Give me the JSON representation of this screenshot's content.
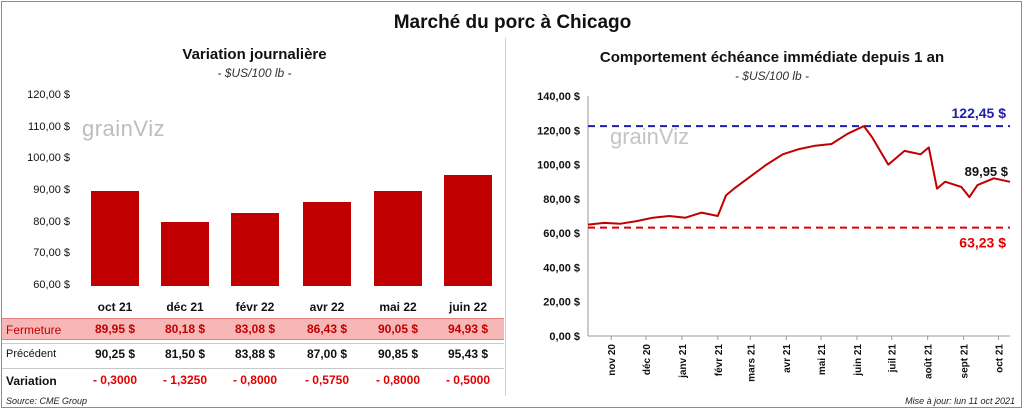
{
  "title": "Marché du porc à Chicago",
  "left_panel": {
    "title": "Variation  journalière",
    "subtitle": "- $US/100 lb -",
    "watermark": "grainViz",
    "y_ticks": [
      "120,00 $",
      "110,00 $",
      "100,00 $",
      "90,00 $",
      "80,00 $",
      "70,00 $",
      "60,00 $"
    ],
    "table": {
      "row_labels": [
        "Fermeture",
        "Précédent",
        "Variation"
      ],
      "fermeture": [
        "89,95  $",
        "80,18  $",
        "83,08  $",
        "86,43  $",
        "90,05  $",
        "94,93  $"
      ],
      "precedent": [
        "90,25  $",
        "81,50  $",
        "83,88  $",
        "87,00  $",
        "90,85  $",
        "95,43  $"
      ],
      "variation": [
        "- 0,3000",
        "- 1,3250",
        "- 0,8000",
        "- 0,5750",
        "- 0,8000",
        "- 0,5000"
      ]
    }
  },
  "right_panel": {
    "title": "Comportement  échéance immédiate depuis 1 an",
    "subtitle": "- $US/100 lb -",
    "watermark": "grainViz",
    "y_ticks": [
      "140,00 $",
      "120,00 $",
      "100,00 $",
      "80,00 $",
      "60,00 $",
      "40,00 $",
      "20,00 $",
      "0,00 $"
    ],
    "x_ticks": [
      "nov 20",
      "déc 20",
      "janv 21",
      "févr 21",
      "mars 21",
      "avr 21",
      "mai 21",
      "juin 21",
      "juil 21",
      "août 21",
      "sept 21",
      "oct 21"
    ],
    "high_label": "122,45 $",
    "low_label": "63,23 $",
    "last_label": "89,95 $"
  },
  "footer": {
    "source": "Source: CME Group",
    "updated": "Mise à jour: lun 11 oct 2021"
  },
  "colors": {
    "bar": "#c00000",
    "high_line": "#1f1fa8",
    "low_line": "#e00000",
    "fermeture_band": "#f7b7b7",
    "variation_text": "#e00000"
  },
  "chart_data": [
    {
      "type": "bar",
      "title": "Variation  journalière",
      "categories": [
        "oct 21",
        "déc 21",
        "févr 22",
        "avr 22",
        "mai 22",
        "juin 22"
      ],
      "values": [
        89.95,
        80.18,
        83.08,
        86.43,
        90.05,
        94.93
      ],
      "ylim": [
        60,
        120
      ],
      "grid": false
    },
    {
      "type": "line",
      "title": "Comportement  échéance immédiate depuis 1 an",
      "ylim": [
        0,
        140
      ],
      "x_range": [
        "2020-10-12",
        "2021-10-11"
      ],
      "grid": false,
      "series": [
        {
          "x": [
            "2020-10-12",
            "2020-10-26",
            "2020-11-09",
            "2020-11-23",
            "2020-12-07",
            "2020-12-21",
            "2021-01-04",
            "2021-01-18",
            "2021-02-01",
            "2021-02-08",
            "2021-02-15",
            "2021-03-01",
            "2021-03-15",
            "2021-03-29",
            "2021-04-12",
            "2021-04-26",
            "2021-05-10",
            "2021-05-24",
            "2021-06-07",
            "2021-06-14",
            "2021-06-28",
            "2021-07-12",
            "2021-07-26",
            "2021-08-02",
            "2021-08-09",
            "2021-08-16",
            "2021-08-30",
            "2021-09-06",
            "2021-09-13",
            "2021-09-27",
            "2021-10-11"
          ],
          "values": [
            65,
            66,
            65.5,
            67,
            69,
            70,
            69,
            72,
            70,
            82,
            86,
            93,
            100,
            106,
            109,
            111,
            112,
            118,
            122.45,
            116,
            100,
            108,
            106,
            110,
            86,
            90,
            87,
            81,
            88,
            92,
            89.95
          ]
        }
      ],
      "reference_lines": [
        {
          "y": 122.45,
          "label": "122,45 $"
        },
        {
          "y": 63.23,
          "label": "63,23 $"
        }
      ],
      "last_value_label": "89,95 $"
    }
  ]
}
